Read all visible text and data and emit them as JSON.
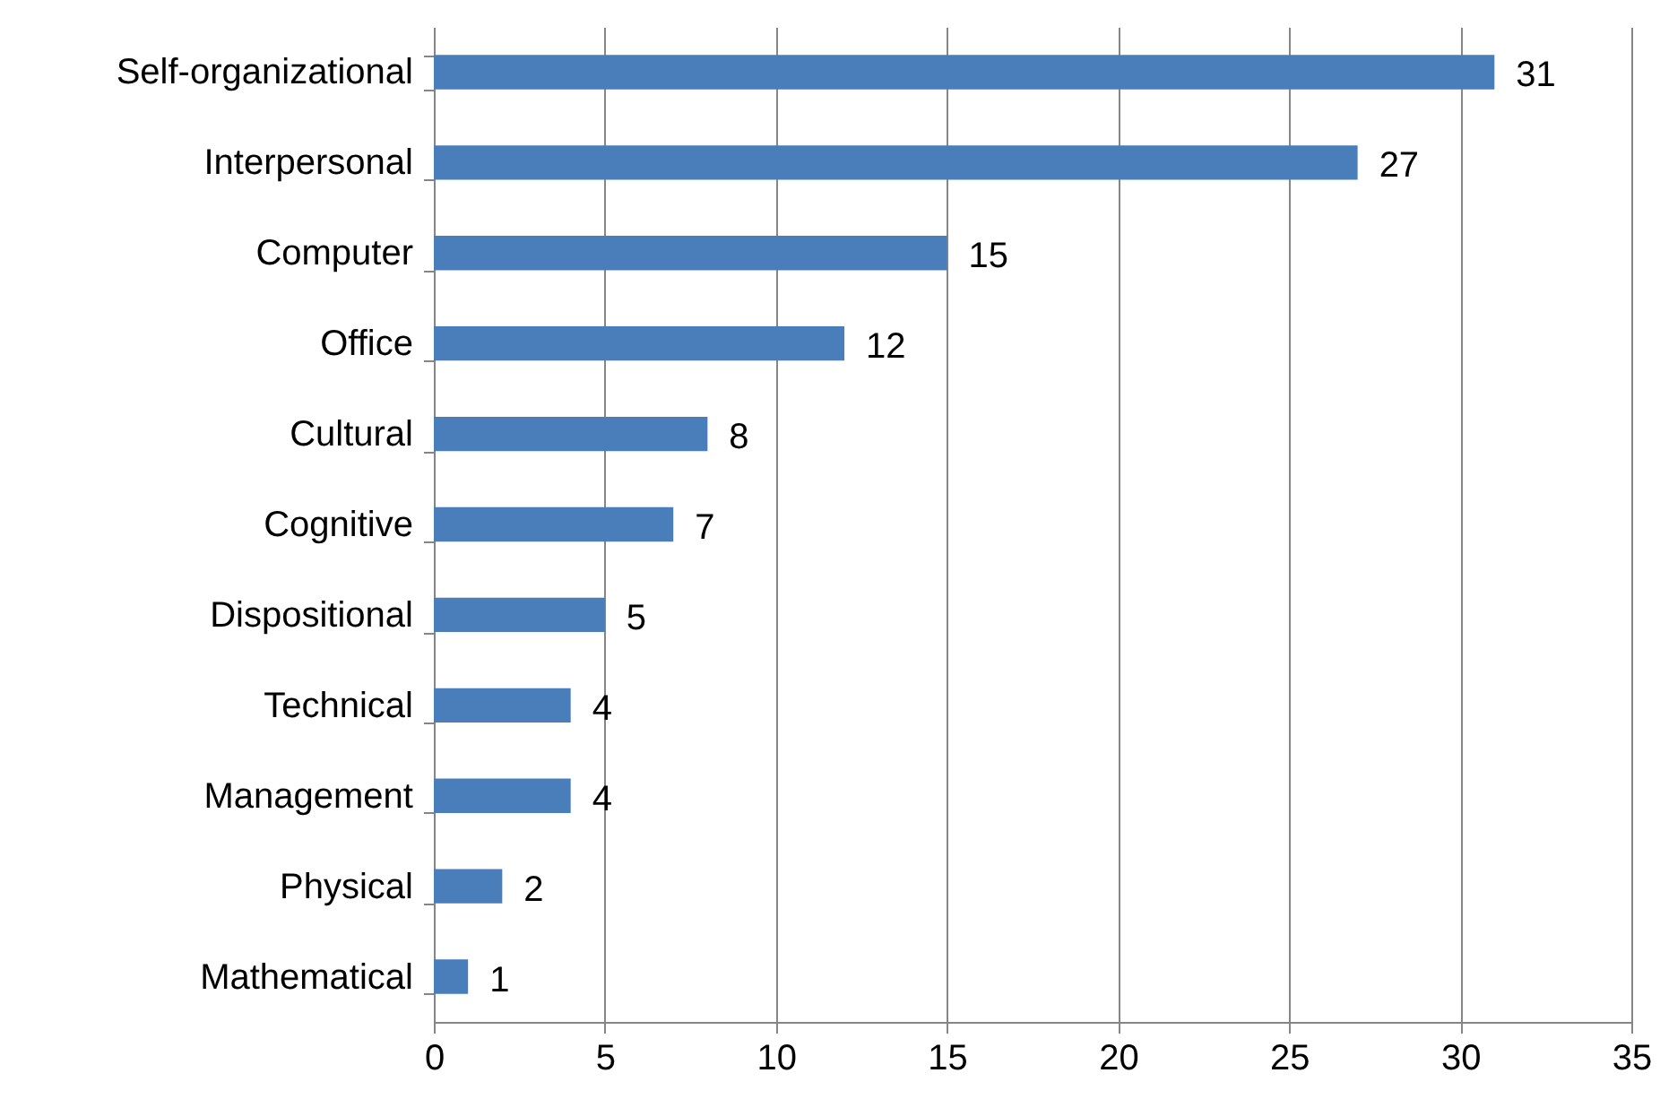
{
  "chart_data": {
    "type": "bar",
    "orientation": "horizontal",
    "categories": [
      "Self-organizational",
      "Interpersonal",
      "Computer",
      "Office",
      "Cultural",
      "Cognitive",
      "Dispositional",
      "Technical",
      "Management",
      "Physical",
      "Mathematical"
    ],
    "values": [
      31,
      27,
      15,
      12,
      8,
      7,
      5,
      4,
      4,
      2,
      1
    ],
    "color": "#4a7ebb",
    "xlim": [
      0,
      35
    ],
    "xticks": [
      0,
      5,
      10,
      15,
      20,
      25,
      30,
      35
    ],
    "grid": "x",
    "data_labels": true
  }
}
